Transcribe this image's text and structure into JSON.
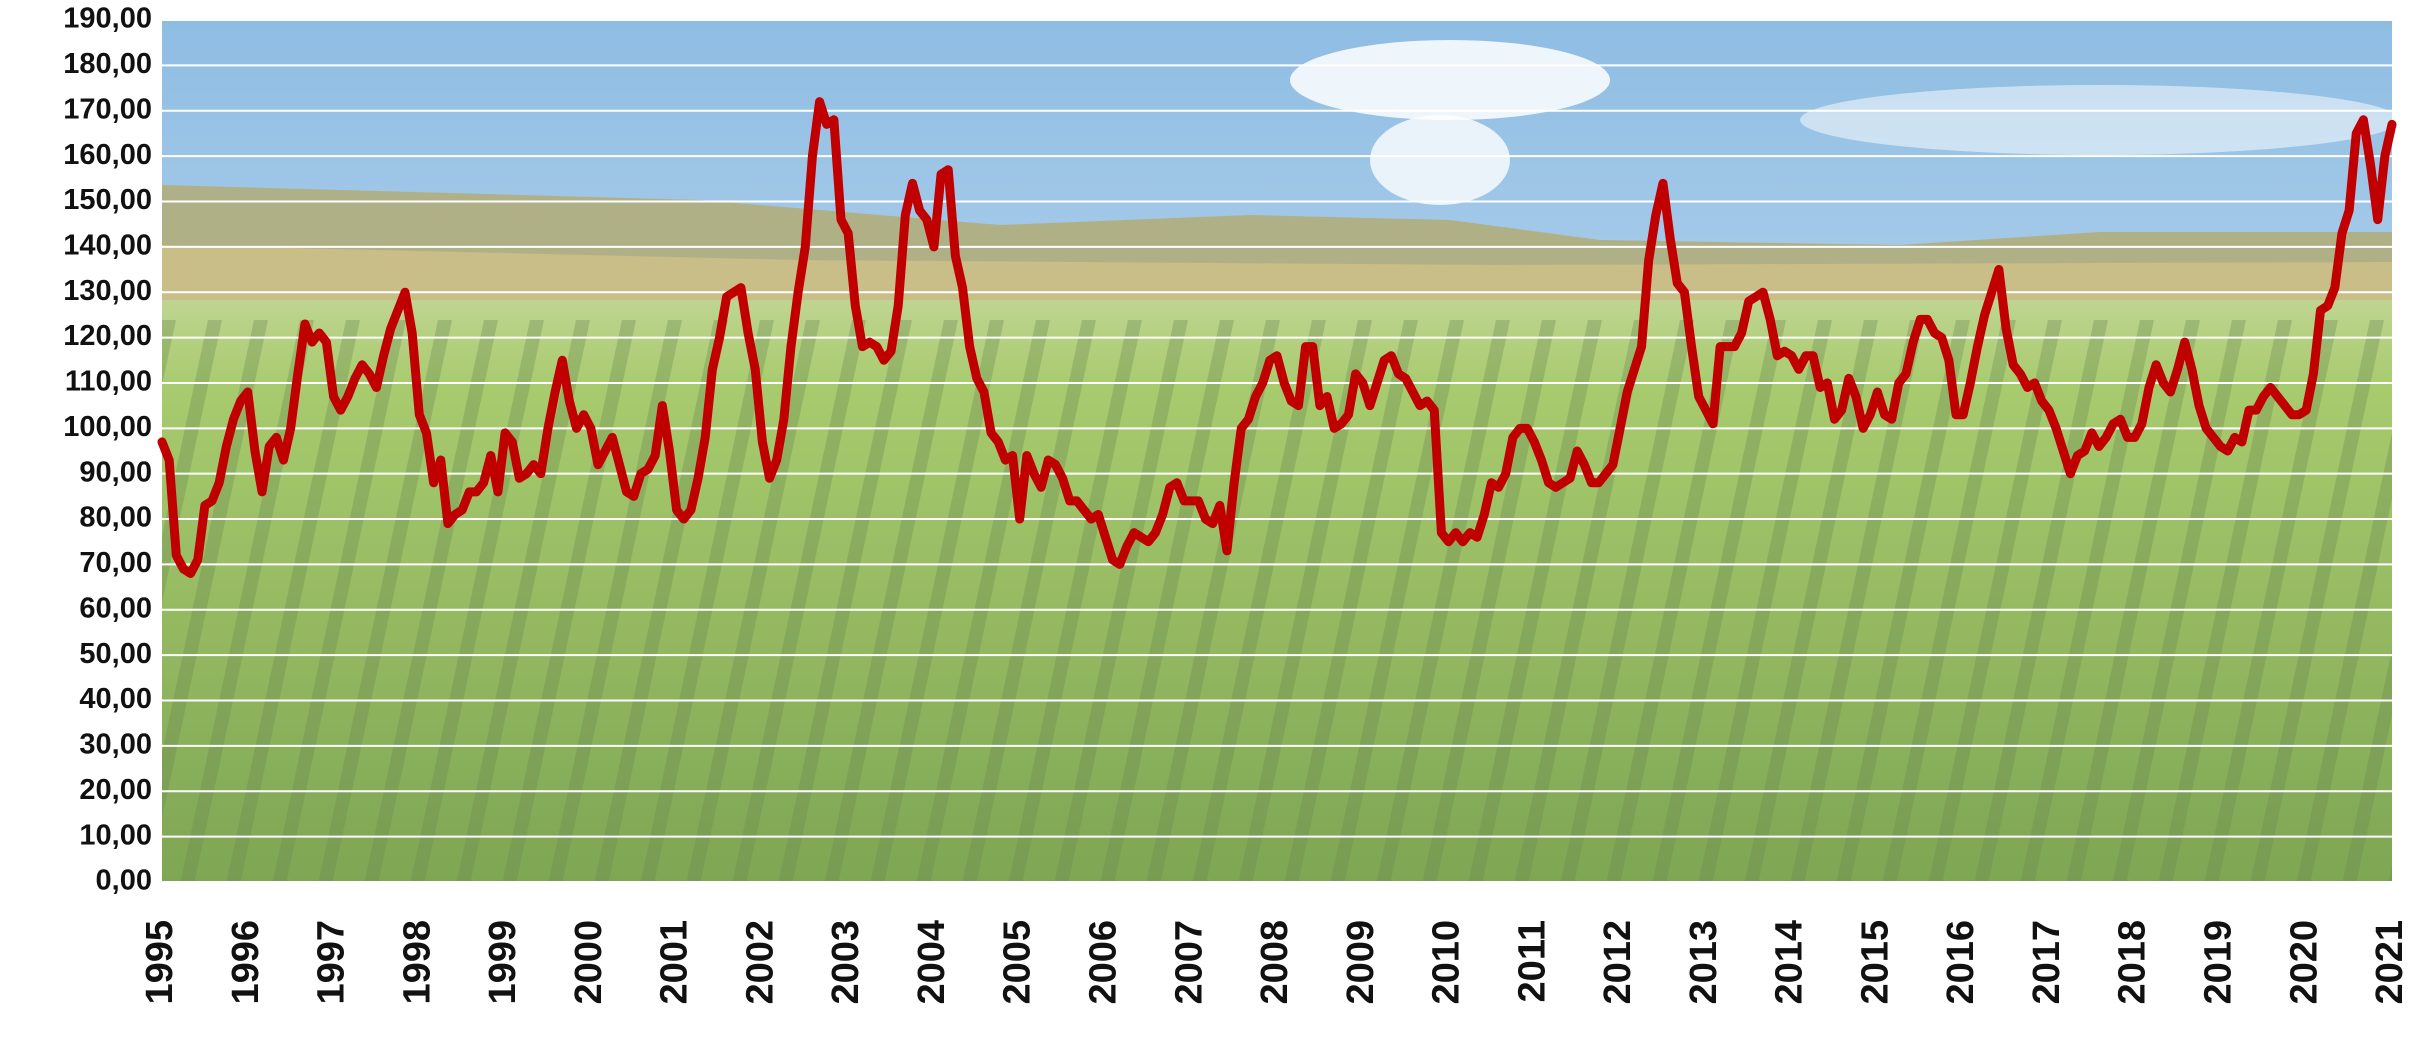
{
  "chart_data": {
    "type": "line",
    "color": "#c00000",
    "grid": true,
    "ylim": [
      0,
      190
    ],
    "yticks": [
      {
        "value": 0,
        "label": "0,00"
      },
      {
        "value": 10,
        "label": "10,00"
      },
      {
        "value": 20,
        "label": "20,00"
      },
      {
        "value": 30,
        "label": "30,00"
      },
      {
        "value": 40,
        "label": "40,00"
      },
      {
        "value": 50,
        "label": "50,00"
      },
      {
        "value": 60,
        "label": "60,00"
      },
      {
        "value": 70,
        "label": "70,00"
      },
      {
        "value": 80,
        "label": "80,00"
      },
      {
        "value": 90,
        "label": "90,00"
      },
      {
        "value": 100,
        "label": "100,00"
      },
      {
        "value": 110,
        "label": "110,00"
      },
      {
        "value": 120,
        "label": "120,00"
      },
      {
        "value": 130,
        "label": "130,00"
      },
      {
        "value": 140,
        "label": "140,00"
      },
      {
        "value": 150,
        "label": "150,00"
      },
      {
        "value": 160,
        "label": "160,00"
      },
      {
        "value": 170,
        "label": "170,00"
      },
      {
        "value": 180,
        "label": "180,00"
      },
      {
        "value": 190,
        "label": "190,00"
      }
    ],
    "categories": [
      "1995",
      null,
      null,
      null,
      null,
      null,
      null,
      null,
      null,
      null,
      null,
      null,
      "1996",
      null,
      null,
      null,
      null,
      null,
      null,
      null,
      null,
      null,
      null,
      null,
      "1997",
      null,
      null,
      null,
      null,
      null,
      null,
      null,
      null,
      null,
      null,
      null,
      "1998",
      null,
      null,
      null,
      null,
      null,
      null,
      null,
      null,
      null,
      null,
      null,
      "1999",
      null,
      null,
      null,
      null,
      null,
      null,
      null,
      null,
      null,
      null,
      null,
      "2000",
      null,
      null,
      null,
      null,
      null,
      null,
      null,
      null,
      null,
      null,
      null,
      "2001",
      null,
      null,
      null,
      null,
      null,
      null,
      null,
      null,
      null,
      null,
      null,
      "2002",
      null,
      null,
      null,
      null,
      null,
      null,
      null,
      null,
      null,
      null,
      null,
      "2003",
      null,
      null,
      null,
      null,
      null,
      null,
      null,
      null,
      null,
      null,
      null,
      "2004",
      null,
      null,
      null,
      null,
      null,
      null,
      null,
      null,
      null,
      null,
      null,
      "2005",
      null,
      null,
      null,
      null,
      null,
      null,
      null,
      null,
      null,
      null,
      null,
      "2006",
      null,
      null,
      null,
      null,
      null,
      null,
      null,
      null,
      null,
      null,
      null,
      "2007",
      null,
      null,
      null,
      null,
      null,
      null,
      null,
      null,
      null,
      null,
      null,
      "2008",
      null,
      null,
      null,
      null,
      null,
      null,
      null,
      null,
      null,
      null,
      null,
      "2009",
      null,
      null,
      null,
      null,
      null,
      null,
      null,
      null,
      null,
      null,
      null,
      "2010",
      null,
      null,
      null,
      null,
      null,
      null,
      null,
      null,
      null,
      null,
      null,
      "2011",
      null,
      null,
      null,
      null,
      null,
      null,
      null,
      null,
      null,
      null,
      null,
      "2012",
      null,
      null,
      null,
      null,
      null,
      null,
      null,
      null,
      null,
      null,
      null,
      "2013",
      null,
      null,
      null,
      null,
      null,
      null,
      null,
      null,
      null,
      null,
      null,
      "2014",
      null,
      null,
      null,
      null,
      null,
      null,
      null,
      null,
      null,
      null,
      null,
      "2015",
      null,
      null,
      null,
      null,
      null,
      null,
      null,
      null,
      null,
      null,
      null,
      "2016",
      null,
      null,
      null,
      null,
      null,
      null,
      null,
      null,
      null,
      null,
      null,
      "2017",
      null,
      null,
      null,
      null,
      null,
      null,
      null,
      null,
      null,
      null,
      null,
      "2018",
      null,
      null,
      null,
      null,
      null,
      null,
      null,
      null,
      null,
      null,
      null,
      "2019",
      null,
      null,
      null,
      null,
      null,
      null,
      null,
      null,
      null,
      null,
      null,
      "2020",
      null,
      null,
      null,
      null,
      null,
      null,
      null,
      null,
      null,
      null,
      null,
      "2021"
    ],
    "values": [
      97,
      93,
      72,
      69,
      68,
      71,
      83,
      84,
      88,
      96,
      102,
      106,
      108,
      95,
      86,
      96,
      98,
      93,
      100,
      112,
      123,
      119,
      121,
      119,
      107,
      104,
      107,
      111,
      114,
      112,
      109,
      116,
      122,
      126,
      130,
      121,
      103,
      99,
      88,
      93,
      79,
      81,
      82,
      86,
      86,
      88,
      94,
      86,
      99,
      97,
      89,
      90,
      92,
      90,
      100,
      108,
      115,
      106,
      100,
      103,
      100,
      92,
      95,
      98,
      92,
      86,
      85,
      90,
      91,
      94,
      105,
      95,
      82,
      80,
      82,
      89,
      98,
      113,
      120,
      129,
      130,
      131,
      121,
      113,
      97,
      89,
      93,
      102,
      118,
      130,
      140,
      160,
      172,
      167,
      168,
      146,
      143,
      127,
      118,
      119,
      118,
      115,
      117,
      127,
      147,
      154,
      148,
      146,
      140,
      156,
      157,
      138,
      131,
      118,
      111,
      108,
      99,
      97,
      93,
      94,
      80,
      94,
      90,
      87,
      93,
      92,
      89,
      84,
      84,
      82,
      80,
      81,
      76,
      71,
      70,
      74,
      77,
      76,
      75,
      77,
      81,
      87,
      88,
      84,
      84,
      84,
      80,
      79,
      83,
      73,
      88,
      100,
      102,
      107,
      110,
      115,
      116,
      110,
      106,
      105,
      118,
      118,
      105,
      107,
      100,
      101,
      103,
      112,
      110,
      105,
      110,
      115,
      116,
      112,
      111,
      108,
      105,
      106,
      104,
      77,
      75,
      77,
      75,
      77,
      76,
      81,
      88,
      87,
      90,
      98,
      100,
      100,
      97,
      93,
      88,
      87,
      88,
      89,
      95,
      92,
      88,
      88,
      90,
      92,
      100,
      108,
      113,
      118,
      137,
      147,
      154,
      142,
      132,
      130,
      118,
      107,
      104,
      101,
      118,
      118,
      118,
      121,
      128,
      129,
      130,
      124,
      116,
      117,
      116,
      113,
      116,
      116,
      109,
      110,
      102,
      104,
      111,
      107,
      100,
      103,
      108,
      103,
      102,
      110,
      112,
      119,
      124,
      124,
      121,
      120,
      115,
      103,
      103,
      110,
      118,
      125,
      130,
      135,
      122,
      114,
      112,
      109,
      110,
      106,
      104,
      100,
      95,
      90,
      94,
      95,
      99,
      96,
      98,
      101,
      102,
      98,
      98,
      101,
      109,
      114,
      110,
      108,
      113,
      119,
      113,
      105,
      100,
      98,
      96,
      95,
      98,
      97,
      104,
      104,
      107,
      109,
      107,
      105,
      103,
      103,
      104,
      112,
      126,
      127,
      131,
      143,
      148,
      165,
      168,
      158,
      146,
      160,
      167
    ]
  }
}
